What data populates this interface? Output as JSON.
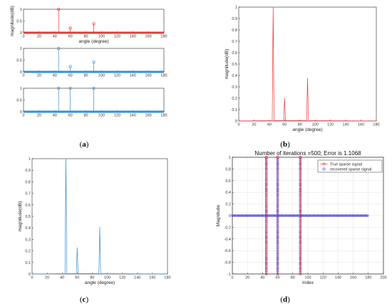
{
  "chart_data": [
    {
      "panel": "a",
      "type": "stem",
      "subplots": [
        {
          "color": "#e8393a",
          "ylabel": "magnitude(dB)",
          "xlabel": "angle (degree)",
          "xlim": [
            0,
            180
          ],
          "ylim": [
            0,
            1
          ],
          "xticks": [
            0,
            20,
            40,
            60,
            80,
            100,
            120,
            140,
            160,
            180
          ],
          "yticks": [
            0,
            0.5,
            1
          ],
          "x": [
            45,
            60,
            90
          ],
          "values": [
            1.0,
            0.2,
            0.38
          ]
        },
        {
          "color": "#3a8fd0",
          "ylabel": "",
          "xlabel": "",
          "xlim": [
            0,
            180
          ],
          "ylim": [
            0,
            1
          ],
          "xticks": [
            0,
            20,
            40,
            60,
            80,
            100,
            120,
            140,
            160,
            180
          ],
          "yticks": [
            0,
            0.5,
            1
          ],
          "x": [
            45,
            60,
            90
          ],
          "values": [
            1.0,
            0.23,
            0.42
          ]
        },
        {
          "color": "#3a8fd0",
          "ylabel": "",
          "xlabel": "",
          "xlim": [
            0,
            180
          ],
          "ylim": [
            0,
            1
          ],
          "xticks": [
            0,
            20,
            40,
            60,
            80,
            100,
            120,
            140,
            160,
            180
          ],
          "yticks": [
            0,
            0.5,
            1
          ],
          "x": [
            45,
            60,
            90
          ],
          "values": [
            1.0,
            1.0,
            1.0
          ]
        }
      ]
    },
    {
      "panel": "b",
      "type": "line",
      "color": "#e8393a",
      "xlabel": "angle (degree)",
      "ylabel": "magnitude(dB)",
      "xlim": [
        0,
        180
      ],
      "ylim": [
        0,
        1
      ],
      "xticks": [
        0,
        20,
        40,
        60,
        80,
        100,
        120,
        140,
        160,
        180
      ],
      "yticks": [
        0,
        0.1,
        0.2,
        0.3,
        0.4,
        0.5,
        0.6,
        0.7,
        0.8,
        0.9,
        1
      ],
      "peaks": [
        {
          "x": 45,
          "y": 1.0
        },
        {
          "x": 60,
          "y": 0.2
        },
        {
          "x": 90,
          "y": 0.38
        }
      ]
    },
    {
      "panel": "c",
      "type": "line",
      "color": "#3a8fd0",
      "xlabel": "angle (degree)",
      "ylabel": "magnitude(dB)",
      "xlim": [
        0,
        180
      ],
      "ylim": [
        0,
        1
      ],
      "xticks": [
        0,
        20,
        40,
        60,
        80,
        100,
        120,
        140,
        160,
        180
      ],
      "yticks": [
        0,
        0.1,
        0.2,
        0.3,
        0.4,
        0.5,
        0.6,
        0.7,
        0.8,
        0.9,
        1
      ],
      "peaks": [
        {
          "x": 45,
          "y": 1.0
        },
        {
          "x": 60,
          "y": 0.23
        },
        {
          "x": 90,
          "y": 0.41
        }
      ]
    },
    {
      "panel": "d",
      "type": "scatter",
      "title": "Number of iterations =500; Error is 1.1068",
      "xlabel": "Index",
      "ylabel": "Magnitude",
      "xlim": [
        0,
        200
      ],
      "ylim": [
        -1,
        1
      ],
      "xticks": [
        0,
        20,
        40,
        60,
        80,
        100,
        120,
        140,
        160,
        180,
        200
      ],
      "yticks": [
        -1,
        -0.8,
        -0.6,
        -0.4,
        -0.2,
        0,
        0.2,
        0.4,
        0.6,
        0.8,
        1
      ],
      "grid": true,
      "legend_position": "top-right",
      "series": [
        {
          "name": "True sparse signal",
          "color": "#e8393a",
          "x": [
            45,
            60,
            90
          ],
          "y": [
            1,
            1,
            1
          ],
          "baseline_x": [
            0,
            180
          ],
          "baseline_y": 0
        },
        {
          "name": "recovered sparse signal",
          "color": "#2f2fe0",
          "x": [
            45,
            60,
            90
          ],
          "y_range": [
            -1,
            1
          ],
          "baseline_x": [
            0,
            180
          ],
          "baseline_y": 0
        }
      ]
    }
  ],
  "panel_labels": {
    "a": "(a)",
    "b": "(b)",
    "c": "(c)",
    "d": "(d)"
  }
}
